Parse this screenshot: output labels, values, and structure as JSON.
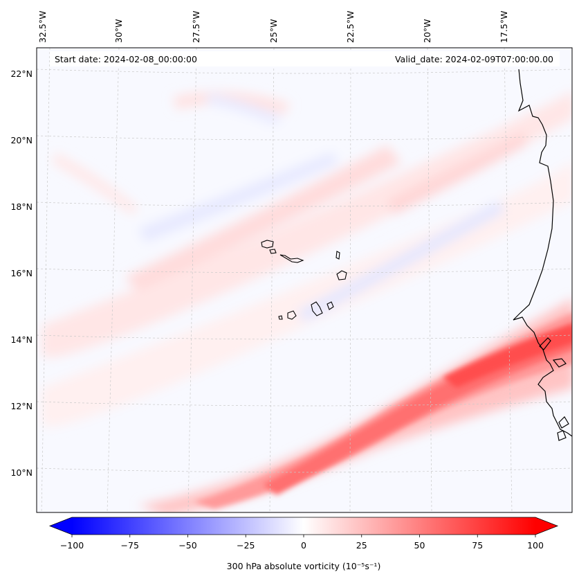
{
  "header": {
    "start_date": "Start date: 2024-02-08_00:00:00",
    "valid_date": "Valid_date: 2024-02-09T07:00:00.00"
  },
  "map": {
    "longitude_labels": [
      "32.5°W",
      "30°W",
      "27.5°W",
      "25°W",
      "22.5°W",
      "20°W",
      "17.5°W"
    ],
    "latitude_labels": [
      "22°N",
      "20°N",
      "18°N",
      "16°N",
      "14°N",
      "12°N",
      "10°N"
    ],
    "field_colors": {
      "positive_strong": "#ff4d4d",
      "positive_mid": "#ff9a9a",
      "positive_weak": "#ffd9d9",
      "negative_weak": "#e3e6ff",
      "background": "#f8f9ff",
      "coastline": "#000000",
      "gridline": "#c8c8c8"
    }
  },
  "colorbar": {
    "label": "300 hPa absolute vorticity (10⁻⁵s⁻¹)",
    "ticks": [
      "−100",
      "−75",
      "−50",
      "−25",
      "0",
      "25",
      "50",
      "75",
      "100"
    ],
    "min": -100,
    "max": 100,
    "colors": {
      "low": "#0000ff",
      "mid": "#ffffff",
      "high": "#ff0000"
    }
  }
}
